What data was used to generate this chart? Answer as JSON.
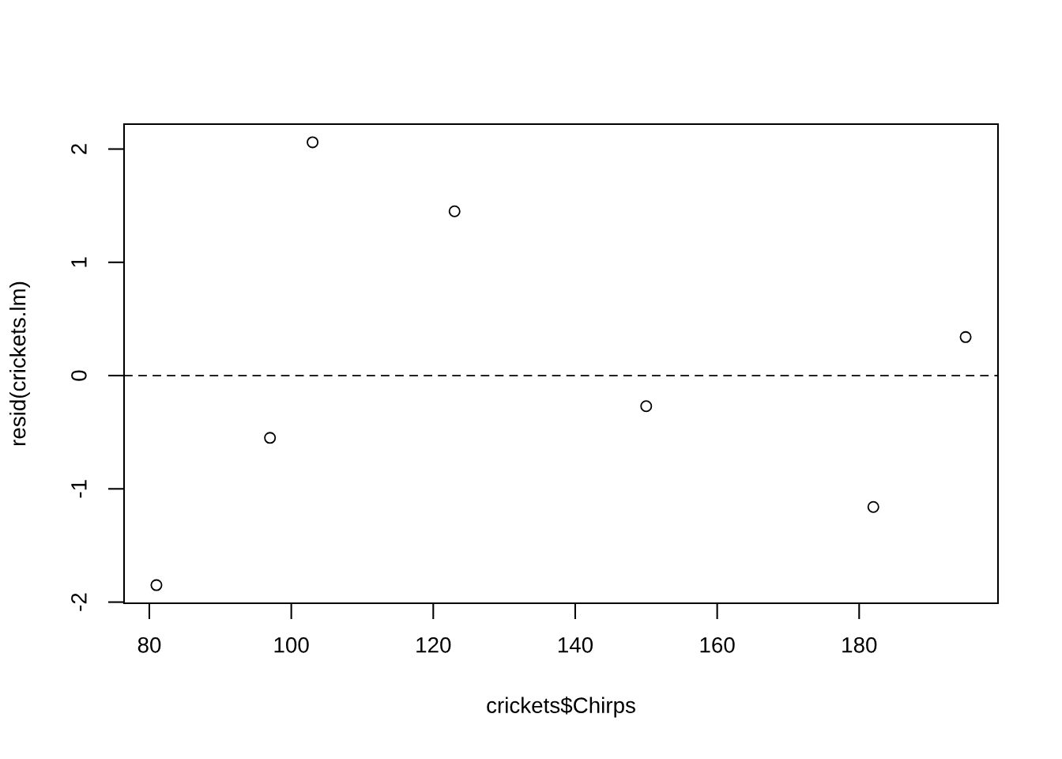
{
  "chart_data": {
    "type": "scatter",
    "xlabel": "crickets$Chirps",
    "ylabel": "resid(crickets.lm)",
    "x": [
      81,
      97,
      103,
      123,
      150,
      182,
      195
    ],
    "values": [
      -1.85,
      -0.55,
      2.06,
      1.45,
      -0.27,
      -1.16,
      0.34
    ],
    "color": "#000000",
    "marker": "circle",
    "xlim": [
      76.44,
      199.56
    ],
    "ylim": [
      -2.01,
      2.22
    ],
    "xticks": [
      80,
      100,
      120,
      140,
      160,
      180
    ],
    "yticks": [
      -2,
      -1,
      0,
      1,
      2
    ],
    "ref_lines": [
      {
        "axis": "y",
        "value": 0,
        "line_style": "dashed",
        "color": "#000000"
      }
    ]
  }
}
